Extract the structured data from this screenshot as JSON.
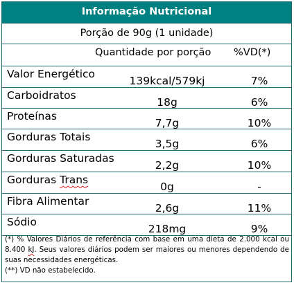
{
  "title": "Informação Nutricional",
  "portion": "Porção de 90g (1 unidade)",
  "header": {
    "quantity": "Quantidade por porção",
    "vd": "%VD(*)"
  },
  "rows": [
    {
      "name": "Valor Energético",
      "amount": "139kcal/579kj",
      "vd": "7%"
    },
    {
      "name": "Carboidratos",
      "amount": "18g",
      "vd": "6%"
    },
    {
      "name": "Proteínas",
      "amount": "7,7g",
      "vd": "10%"
    },
    {
      "name": "Gorduras Totais",
      "amount": "3,5g",
      "vd": "6%"
    },
    {
      "name": "Gorduras Saturadas",
      "amount": "2,2g",
      "vd": "10%"
    },
    {
      "name_prefix": "Gorduras ",
      "name_suffix": "Trans",
      "amount": "0g",
      "vd": "-"
    },
    {
      "name": "Fibra Alimentar",
      "amount": "2,6g",
      "vd": "11%"
    },
    {
      "name": "Sódio",
      "amount": "218mg",
      "vd": "9%"
    }
  ],
  "footnote": {
    "line1_a": "(*) % Valores Diários de referência com base em uma dieta de 2.000 kcal ou 8.400 ",
    "line1_kj": "kJ",
    "line1_b": ". Seus valores diários podem ser maiores ou menores dependendo de suas necessidades energéticas.",
    "line2": "(**) VD não estabelecido."
  },
  "colors": {
    "header_bg": "#008080",
    "border": "#1f6b6b"
  }
}
